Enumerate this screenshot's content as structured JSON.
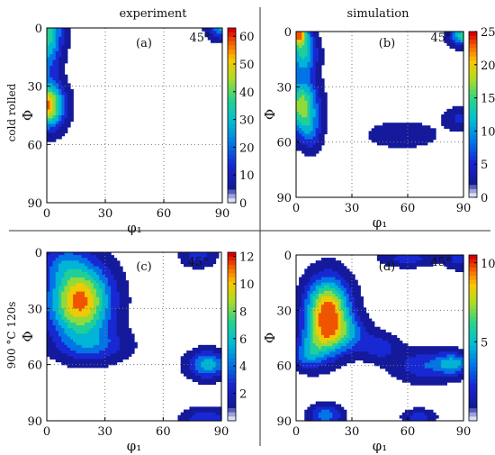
{
  "column_headers": [
    "experiment",
    "simulation"
  ],
  "row_labels": [
    "cold rolled",
    "900 °C 120s"
  ],
  "phi2_label": "45°",
  "chart_data": [
    {
      "type": "heatmap",
      "panel": "(a)",
      "column": "experiment",
      "row": "cold rolled",
      "xlabel": "φ₁",
      "ylabel": "Φ",
      "xlim": [
        0,
        90
      ],
      "ylim": [
        90,
        0
      ],
      "x_ticks": [
        0,
        30,
        60,
        90
      ],
      "y_ticks": [
        0,
        30,
        60,
        90
      ],
      "colorbar": {
        "min": 0,
        "max": 63,
        "ticks": [
          0,
          10,
          20,
          30,
          40,
          50,
          60
        ]
      },
      "peaks": [
        {
          "phi1": 0,
          "Phi": 0,
          "value": 30,
          "sx": 6,
          "sy": 9
        },
        {
          "phi1": 0,
          "Phi": 14,
          "value": 18,
          "sx": 5,
          "sy": 10
        },
        {
          "phi1": 0,
          "Phi": 40,
          "value": 58,
          "sx": 6,
          "sy": 8
        },
        {
          "phi1": 59,
          "Phi": 58,
          "value": 3,
          "sx": 3,
          "sy": 2
        },
        {
          "phi1": 90,
          "Phi": 0,
          "value": 28,
          "sx": 5,
          "sy": 4
        }
      ]
    },
    {
      "type": "heatmap",
      "panel": "(b)",
      "column": "simulation",
      "row": "cold rolled",
      "xlabel": "φ₁",
      "ylabel": "Φ",
      "xlim": [
        0,
        90
      ],
      "ylim": [
        90,
        0
      ],
      "x_ticks": [
        0,
        30,
        60,
        90
      ],
      "y_ticks": [
        0,
        30,
        60,
        90
      ],
      "colorbar": {
        "min": 0,
        "max": 25,
        "ticks": [
          0,
          5,
          10,
          15,
          20,
          25
        ]
      },
      "peaks": [
        {
          "phi1": 0,
          "Phi": 0,
          "value": 24,
          "sx": 4,
          "sy": 5
        },
        {
          "phi1": 4,
          "Phi": 12,
          "value": 13,
          "sx": 5,
          "sy": 8
        },
        {
          "phi1": 3,
          "Phi": 40,
          "value": 18,
          "sx": 6,
          "sy": 10
        },
        {
          "phi1": 8,
          "Phi": 55,
          "value": 6,
          "sx": 4,
          "sy": 7
        },
        {
          "phi1": 57,
          "Phi": 56,
          "value": 4,
          "sx": 13,
          "sy": 5
        },
        {
          "phi1": 88,
          "Phi": 47,
          "value": 5,
          "sx": 6,
          "sy": 4
        },
        {
          "phi1": 90,
          "Phi": 2,
          "value": 15,
          "sx": 5,
          "sy": 4
        }
      ]
    },
    {
      "type": "heatmap",
      "panel": "(c)",
      "column": "experiment",
      "row": "900 °C 120s",
      "xlabel": "φ₁",
      "ylabel": "Φ",
      "xlim": [
        0,
        90
      ],
      "ylim": [
        90,
        0
      ],
      "x_ticks": [
        0,
        30,
        60,
        90
      ],
      "y_ticks": [
        0,
        30,
        60,
        90
      ],
      "colorbar": {
        "min": 0,
        "max": 12.3,
        "ticks": [
          2,
          4,
          6,
          8,
          10,
          12
        ]
      },
      "peaks": [
        {
          "phi1": 17,
          "Phi": 26,
          "value": 11.5,
          "sx": 11,
          "sy": 14
        },
        {
          "phi1": 8,
          "Phi": 5,
          "value": 2.5,
          "sx": 7,
          "sy": 6
        },
        {
          "phi1": 25,
          "Phi": 50,
          "value": 3,
          "sx": 12,
          "sy": 6
        },
        {
          "phi1": 83,
          "Phi": 60,
          "value": 6,
          "sx": 7,
          "sy": 5
        },
        {
          "phi1": 78,
          "Phi": 2,
          "value": 3,
          "sx": 6,
          "sy": 4
        },
        {
          "phi1": 82,
          "Phi": 89,
          "value": 3.5,
          "sx": 8,
          "sy": 4
        }
      ]
    },
    {
      "type": "heatmap",
      "panel": "(d)",
      "column": "simulation",
      "row": "900 °C 120s",
      "xlabel": "φ₁",
      "ylabel": "Φ",
      "xlim": [
        0,
        90
      ],
      "ylim": [
        90,
        0
      ],
      "x_ticks": [
        0,
        30,
        60,
        90
      ],
      "y_ticks": [
        0,
        30,
        60,
        90
      ],
      "colorbar": {
        "min": 0,
        "max": 10.5,
        "ticks": [
          5,
          10
        ]
      },
      "peaks": [
        {
          "phi1": 17,
          "Phi": 30,
          "value": 10,
          "sx": 8,
          "sy": 12
        },
        {
          "phi1": 12,
          "Phi": 48,
          "value": 4,
          "sx": 7,
          "sy": 8
        },
        {
          "phi1": 27,
          "Phi": 43,
          "value": 3.5,
          "sx": 8,
          "sy": 7
        },
        {
          "phi1": 5,
          "Phi": 55,
          "value": 2.5,
          "sx": 5,
          "sy": 5
        },
        {
          "phi1": 45,
          "Phi": 50,
          "value": 2.5,
          "sx": 7,
          "sy": 5
        },
        {
          "phi1": 70,
          "Phi": 60,
          "value": 3,
          "sx": 12,
          "sy": 6
        },
        {
          "phi1": 85,
          "Phi": 59,
          "value": 4,
          "sx": 6,
          "sy": 4
        },
        {
          "phi1": 16,
          "Phi": 87,
          "value": 4,
          "sx": 6,
          "sy": 4
        },
        {
          "phi1": 66,
          "Phi": 88,
          "value": 2.5,
          "sx": 6,
          "sy": 3
        },
        {
          "phi1": 60,
          "Phi": 2,
          "value": 2.5,
          "sx": 10,
          "sy": 3
        },
        {
          "phi1": 88,
          "Phi": 2,
          "value": 2.5,
          "sx": 5,
          "sy": 4
        }
      ]
    }
  ]
}
